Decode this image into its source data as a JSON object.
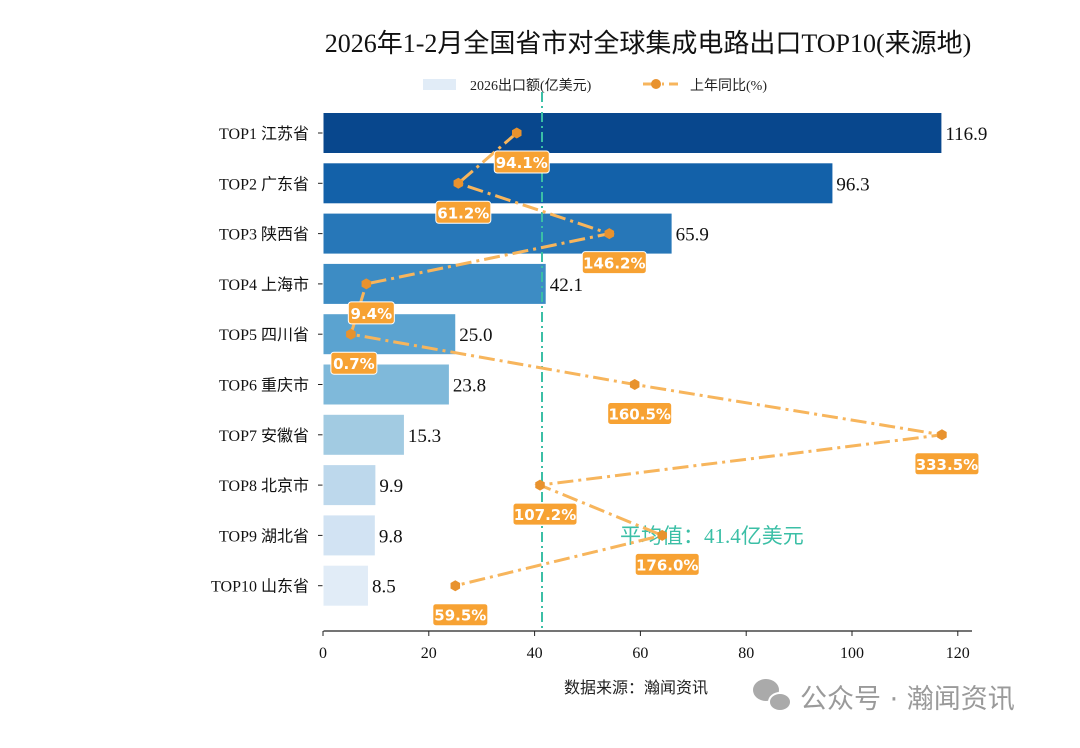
{
  "chart_data": {
    "type": "bar",
    "orientation": "horizontal",
    "title": "2026年1-2月全国省市对全球集成电路出口TOP10(来源地)",
    "categories": [
      "TOP1 江苏省",
      "TOP2 广东省",
      "TOP3 陕西省",
      "TOP4 上海市",
      "TOP5 四川省",
      "TOP6 重庆市",
      "TOP7 安徽省",
      "TOP8 北京市",
      "TOP9 湖北省",
      "TOP10 山东省"
    ],
    "series": [
      {
        "name": "2026出口额(亿美元)",
        "type": "bar",
        "values": [
          116.9,
          96.3,
          65.9,
          42.1,
          25.0,
          23.8,
          15.3,
          9.9,
          9.8,
          8.5
        ],
        "value_labels": [
          "116.9",
          "96.3",
          "65.9",
          "42.1",
          "25.0",
          "23.8",
          "15.3",
          "9.9",
          "9.8",
          "8.5"
        ]
      },
      {
        "name": "上年同比(%)",
        "type": "line",
        "values": [
          94.1,
          61.2,
          146.2,
          9.4,
          0.7,
          160.5,
          333.5,
          107.2,
          176.0,
          59.5
        ],
        "value_labels": [
          "94.1%",
          "61.2%",
          "146.2%",
          "9.4%",
          "0.7%",
          "160.5%",
          "333.5%",
          "107.2%",
          "176.0%",
          "59.5%"
        ]
      }
    ],
    "xlim": [
      0,
      122.7
    ],
    "xticks": [
      0,
      20,
      40,
      60,
      80,
      100,
      120
    ],
    "average": {
      "value": 41.4,
      "label": "平均值：41.4亿美元"
    },
    "legend_placement": "top-center",
    "grid": false,
    "colors": {
      "bars": [
        "#08478d",
        "#1361a9",
        "#2777b8",
        "#3d8cc4",
        "#5ba3d0",
        "#7fb9da",
        "#a2cbe2",
        "#bdd8ec",
        "#d2e3f3",
        "#e1ecf7"
      ],
      "line": "#f7b55c",
      "marker": "#e8922e",
      "label_box": "#f7a233",
      "average": "#3bbfa6"
    }
  },
  "source": "数据来源：瀚闻资讯",
  "watermark": "公众号 · 瀚闻资讯"
}
